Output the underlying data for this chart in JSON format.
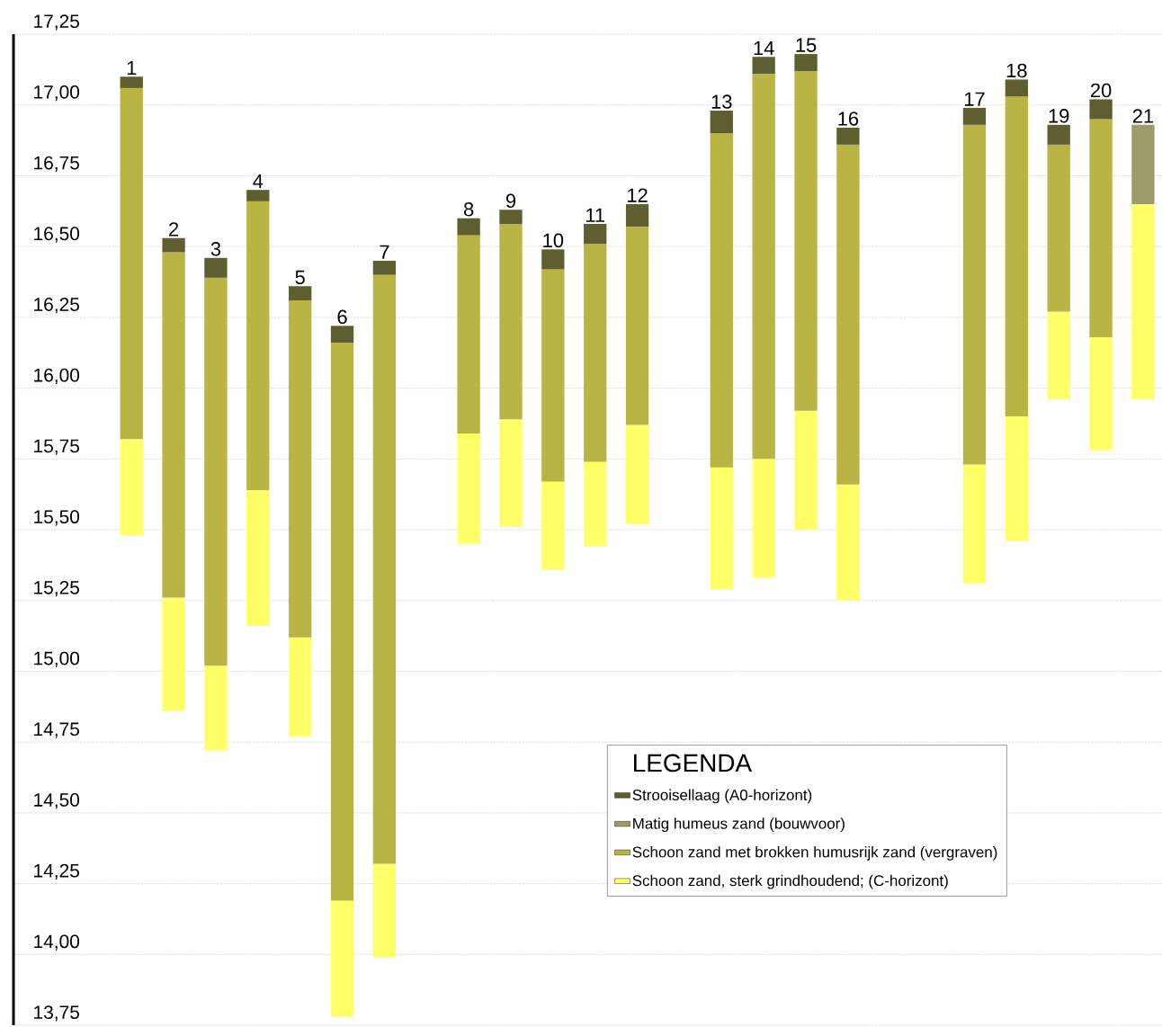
{
  "chart_data": {
    "type": "bar",
    "legend": "bottom right",
    "legend_title": "LEGENDA",
    "grid": "y",
    "categories": [
      "1",
      "2",
      "3",
      "4",
      "5",
      "6",
      "7",
      null,
      "8",
      "9",
      "10",
      "11",
      "12",
      null,
      "13",
      "14",
      "15",
      "16",
      null,
      null,
      "17",
      "18",
      "19",
      "20",
      "21"
    ],
    "series": [
      {
        "name": "Schoon zand, sterk grindhoudend; (C-horizont)",
        "color": "#ffff66",
        "base": [
          15.48,
          14.86,
          14.72,
          15.16,
          14.77,
          13.78,
          13.99,
          null,
          15.45,
          15.51,
          15.36,
          15.44,
          15.52,
          null,
          15.29,
          15.33,
          15.5,
          15.25,
          null,
          null,
          15.31,
          15.46,
          15.96,
          15.78,
          15.96
        ],
        "values": [
          0.34,
          0.4,
          0.3,
          0.48,
          0.35,
          0.41,
          0.33,
          null,
          0.39,
          0.38,
          0.31,
          0.3,
          0.35,
          null,
          0.43,
          0.42,
          0.42,
          0.41,
          null,
          null,
          0.42,
          0.44,
          0.31,
          0.4,
          0.69
        ]
      },
      {
        "name": "Schoon zand met brokken humusrijk zand (vergraven)",
        "color": "#b9b443",
        "base": [
          15.82,
          15.26,
          15.02,
          15.64,
          15.12,
          14.19,
          14.32,
          null,
          15.84,
          15.89,
          15.67,
          15.74,
          15.87,
          null,
          15.72,
          15.75,
          15.92,
          15.66,
          null,
          null,
          15.73,
          15.9,
          16.27,
          16.18,
          null
        ],
        "values": [
          1.24,
          1.22,
          1.37,
          1.02,
          1.19,
          1.97,
          2.08,
          null,
          0.7,
          0.69,
          0.75,
          0.77,
          0.7,
          null,
          1.18,
          1.36,
          1.2,
          1.2,
          null,
          null,
          1.2,
          1.13,
          0.59,
          0.77,
          null
        ]
      },
      {
        "name": "Matig humeus zand (bouwvoor)",
        "color": "#9c9c6a",
        "base": [
          null,
          null,
          null,
          null,
          null,
          null,
          null,
          null,
          null,
          null,
          null,
          null,
          null,
          null,
          null,
          null,
          null,
          null,
          null,
          null,
          null,
          null,
          null,
          null,
          16.65
        ],
        "values": [
          null,
          null,
          null,
          null,
          null,
          null,
          null,
          null,
          null,
          null,
          null,
          null,
          null,
          null,
          null,
          null,
          null,
          null,
          null,
          null,
          null,
          null,
          null,
          null,
          0.28
        ]
      },
      {
        "name": "Strooisellaag (A0-horizont)",
        "color": "#5e5e30",
        "base": [
          17.06,
          16.48,
          16.39,
          16.66,
          16.31,
          16.16,
          16.4,
          null,
          16.54,
          16.58,
          16.42,
          16.51,
          16.57,
          null,
          16.9,
          17.11,
          17.12,
          16.86,
          null,
          null,
          16.93,
          17.03,
          16.86,
          16.95,
          null
        ],
        "values": [
          0.04,
          0.05,
          0.07,
          0.04,
          0.05,
          0.06,
          0.05,
          null,
          0.06,
          0.05,
          0.07,
          0.07,
          0.08,
          null,
          0.08,
          0.06,
          0.06,
          0.06,
          null,
          null,
          0.06,
          0.06,
          0.07,
          0.07,
          null
        ]
      }
    ],
    "ylim": [
      13.75,
      17.25
    ],
    "yticks": [
      {
        "value": 13.75,
        "label": "13,75"
      },
      {
        "value": 14.0,
        "label": "14,00"
      },
      {
        "value": 14.25,
        "label": "14,25"
      },
      {
        "value": 14.5,
        "label": "14,50"
      },
      {
        "value": 14.75,
        "label": "14,75"
      },
      {
        "value": 15.0,
        "label": "15,00"
      },
      {
        "value": 15.25,
        "label": "15,25"
      },
      {
        "value": 15.5,
        "label": "15,50"
      },
      {
        "value": 15.75,
        "label": "15,75"
      },
      {
        "value": 16.0,
        "label": "16,00"
      },
      {
        "value": 16.25,
        "label": "16,25"
      },
      {
        "value": 16.5,
        "label": "16,50"
      },
      {
        "value": 16.75,
        "label": "16,75"
      },
      {
        "value": 17.0,
        "label": "17,00"
      },
      {
        "value": 17.25,
        "label": "17,25"
      }
    ]
  }
}
